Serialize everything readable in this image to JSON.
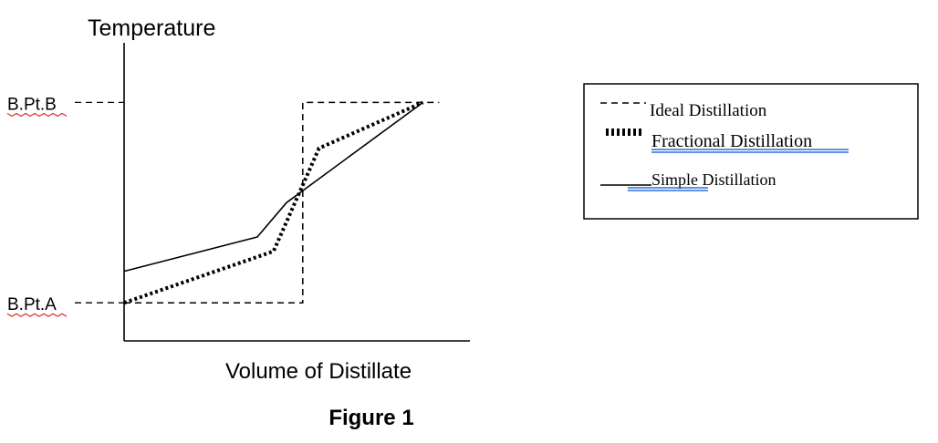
{
  "chart_data": {
    "type": "line",
    "title": "",
    "ylabel": "Temperature",
    "xlabel": "Volume of Distillate",
    "xlim": [
      0,
      100
    ],
    "ylim": [
      0,
      100
    ],
    "y_levels": [
      {
        "label": "B.Pt.B",
        "value": 90
      },
      {
        "label": "B.Pt.A",
        "value": 20
      }
    ],
    "legend_position": "right",
    "series": [
      {
        "name": "Ideal Distillation",
        "style": "dashed",
        "x": [
          0,
          55,
          55,
          97
        ],
        "y": [
          20,
          20,
          90,
          90
        ]
      },
      {
        "name": "Fractional  Distillation",
        "style": "dotted",
        "x": [
          0,
          46,
          60,
          92
        ],
        "y": [
          20,
          38,
          74,
          90
        ]
      },
      {
        "name": "Simple Distillation",
        "style": "solid",
        "x": [
          0,
          41,
          50,
          92
        ],
        "y": [
          31,
          43,
          55,
          90
        ]
      }
    ]
  },
  "caption": "Figure 1",
  "colors": {
    "line": "#000000",
    "spellcheck": "#d9342b",
    "link_underline": "#2f6fd6"
  }
}
